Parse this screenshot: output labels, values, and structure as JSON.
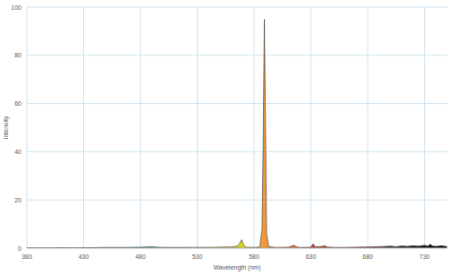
{
  "chart_data": {
    "type": "area",
    "x_label": "Wavelength (nm)",
    "y_label": "Intensity",
    "x": [
      380,
      390,
      400,
      410,
      420,
      430,
      440,
      450,
      460,
      470,
      480,
      490,
      495,
      500,
      510,
      520,
      530,
      540,
      550,
      560,
      565,
      567,
      569,
      571,
      573,
      580,
      585,
      587,
      588,
      589,
      590,
      591,
      593,
      600,
      610,
      613,
      615,
      617,
      620,
      630,
      632,
      634,
      640,
      642,
      644,
      650,
      660,
      670,
      680,
      690,
      700,
      705,
      710,
      715,
      720,
      725,
      730,
      733,
      735,
      737,
      740,
      745,
      750
    ],
    "values": [
      0.1,
      0.1,
      0.1,
      0.2,
      0.1,
      0.2,
      0.2,
      0.3,
      0.3,
      0.3,
      0.4,
      0.6,
      0.4,
      0.3,
      0.3,
      0.3,
      0.3,
      0.3,
      0.4,
      0.5,
      0.8,
      1.8,
      3.5,
      1.2,
      0.4,
      0.3,
      0.5,
      8,
      45,
      95,
      55,
      6,
      0.6,
      0.3,
      0.4,
      0.8,
      1.2,
      0.6,
      0.3,
      0.4,
      1.8,
      0.5,
      0.7,
      1.0,
      0.5,
      0.3,
      0.3,
      0.4,
      0.5,
      0.6,
      0.8,
      0.6,
      0.9,
      0.7,
      1.0,
      0.8,
      1.2,
      0.8,
      1.6,
      0.9,
      0.7,
      1.0,
      0.6
    ],
    "xlim": [
      380,
      750
    ],
    "xticks": [
      380,
      430,
      480,
      530,
      580,
      630,
      680,
      730
    ],
    "ylim": [
      0,
      100
    ],
    "yticks": [
      0,
      20,
      40,
      60,
      80,
      100
    ],
    "grid": true
  }
}
